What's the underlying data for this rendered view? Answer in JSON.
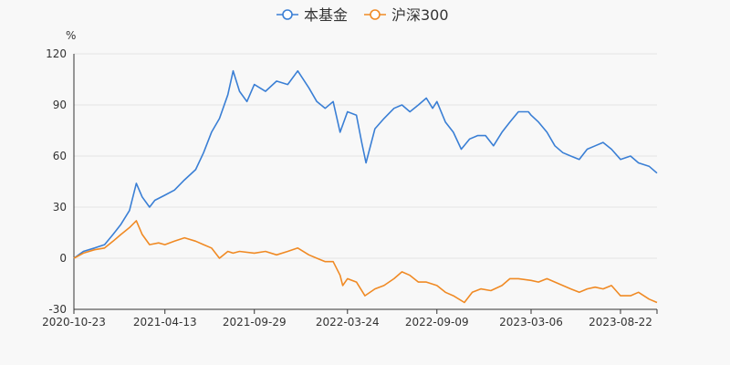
{
  "chart_data": {
    "type": "line",
    "title": "",
    "xlabel": "",
    "ylabel": "%",
    "ylim": [
      -30,
      120
    ],
    "yticks": [
      -30,
      0,
      30,
      60,
      90,
      120
    ],
    "x_start": "2020-10-23",
    "x_end": "2023-10-30",
    "x_ticks": [
      "2020-10-23",
      "2021-04-13",
      "2021-09-29",
      "2022-03-24",
      "2022-09-09",
      "2023-03-06",
      "2023-08-22"
    ],
    "legend_position": "top-center",
    "series": [
      {
        "name": "本基金",
        "color": "#3a7fd5",
        "points": [
          [
            "2020-10-23",
            0
          ],
          [
            "2020-11-10",
            4
          ],
          [
            "2020-12-01",
            6
          ],
          [
            "2020-12-20",
            8
          ],
          [
            "2021-01-05",
            14
          ],
          [
            "2021-01-20",
            20
          ],
          [
            "2021-02-05",
            28
          ],
          [
            "2021-02-18",
            44
          ],
          [
            "2021-03-01",
            36
          ],
          [
            "2021-03-15",
            30
          ],
          [
            "2021-03-25",
            34
          ],
          [
            "2021-04-13",
            37
          ],
          [
            "2021-05-01",
            40
          ],
          [
            "2021-05-20",
            46
          ],
          [
            "2021-06-10",
            52
          ],
          [
            "2021-06-25",
            62
          ],
          [
            "2021-07-10",
            74
          ],
          [
            "2021-07-25",
            82
          ],
          [
            "2021-08-10",
            96
          ],
          [
            "2021-08-20",
            110
          ],
          [
            "2021-09-01",
            98
          ],
          [
            "2021-09-15",
            92
          ],
          [
            "2021-09-29",
            102
          ],
          [
            "2021-10-20",
            98
          ],
          [
            "2021-11-10",
            104
          ],
          [
            "2021-12-01",
            102
          ],
          [
            "2021-12-20",
            110
          ],
          [
            "2022-01-10",
            100
          ],
          [
            "2022-01-25",
            92
          ],
          [
            "2022-02-10",
            88
          ],
          [
            "2022-02-25",
            92
          ],
          [
            "2022-03-10",
            74
          ],
          [
            "2022-03-24",
            86
          ],
          [
            "2022-04-10",
            84
          ],
          [
            "2022-04-20",
            68
          ],
          [
            "2022-04-28",
            56
          ],
          [
            "2022-05-15",
            76
          ],
          [
            "2022-06-01",
            82
          ],
          [
            "2022-06-20",
            88
          ],
          [
            "2022-07-05",
            90
          ],
          [
            "2022-07-20",
            86
          ],
          [
            "2022-08-05",
            90
          ],
          [
            "2022-08-20",
            94
          ],
          [
            "2022-09-01",
            88
          ],
          [
            "2022-09-09",
            92
          ],
          [
            "2022-09-25",
            80
          ],
          [
            "2022-10-10",
            74
          ],
          [
            "2022-10-25",
            64
          ],
          [
            "2022-11-10",
            70
          ],
          [
            "2022-11-25",
            72
          ],
          [
            "2022-12-10",
            72
          ],
          [
            "2022-12-25",
            66
          ],
          [
            "2023-01-10",
            74
          ],
          [
            "2023-01-25",
            80
          ],
          [
            "2023-02-10",
            86
          ],
          [
            "2023-03-01",
            86
          ],
          [
            "2023-03-06",
            84
          ],
          [
            "2023-03-20",
            80
          ],
          [
            "2023-04-05",
            74
          ],
          [
            "2023-04-20",
            66
          ],
          [
            "2023-05-05",
            62
          ],
          [
            "2023-05-20",
            60
          ],
          [
            "2023-06-05",
            58
          ],
          [
            "2023-06-20",
            64
          ],
          [
            "2023-07-05",
            66
          ],
          [
            "2023-07-20",
            68
          ],
          [
            "2023-08-05",
            64
          ],
          [
            "2023-08-22",
            58
          ],
          [
            "2023-09-10",
            60
          ],
          [
            "2023-09-25",
            56
          ],
          [
            "2023-10-15",
            54
          ],
          [
            "2023-10-30",
            50
          ]
        ]
      },
      {
        "name": "沪深300",
        "color": "#f08a24",
        "points": [
          [
            "2020-10-23",
            0
          ],
          [
            "2020-11-10",
            3
          ],
          [
            "2020-12-01",
            5
          ],
          [
            "2020-12-20",
            6
          ],
          [
            "2021-01-05",
            10
          ],
          [
            "2021-01-20",
            14
          ],
          [
            "2021-02-05",
            18
          ],
          [
            "2021-02-18",
            22
          ],
          [
            "2021-03-01",
            14
          ],
          [
            "2021-03-15",
            8
          ],
          [
            "2021-04-01",
            9
          ],
          [
            "2021-04-13",
            8
          ],
          [
            "2021-05-01",
            10
          ],
          [
            "2021-05-20",
            12
          ],
          [
            "2021-06-10",
            10
          ],
          [
            "2021-06-25",
            8
          ],
          [
            "2021-07-10",
            6
          ],
          [
            "2021-07-25",
            0
          ],
          [
            "2021-08-10",
            4
          ],
          [
            "2021-08-20",
            3
          ],
          [
            "2021-09-01",
            4
          ],
          [
            "2021-09-29",
            3
          ],
          [
            "2021-10-20",
            4
          ],
          [
            "2021-11-10",
            2
          ],
          [
            "2021-12-01",
            4
          ],
          [
            "2021-12-20",
            6
          ],
          [
            "2022-01-10",
            2
          ],
          [
            "2022-01-25",
            0
          ],
          [
            "2022-02-10",
            -2
          ],
          [
            "2022-02-25",
            -2
          ],
          [
            "2022-03-10",
            -10
          ],
          [
            "2022-03-15",
            -16
          ],
          [
            "2022-03-24",
            -12
          ],
          [
            "2022-04-10",
            -14
          ],
          [
            "2022-04-26",
            -22
          ],
          [
            "2022-05-15",
            -18
          ],
          [
            "2022-06-01",
            -16
          ],
          [
            "2022-06-20",
            -12
          ],
          [
            "2022-07-05",
            -8
          ],
          [
            "2022-07-20",
            -10
          ],
          [
            "2022-08-05",
            -14
          ],
          [
            "2022-08-20",
            -14
          ],
          [
            "2022-09-09",
            -16
          ],
          [
            "2022-09-25",
            -20
          ],
          [
            "2022-10-10",
            -22
          ],
          [
            "2022-10-31",
            -26
          ],
          [
            "2022-11-15",
            -20
          ],
          [
            "2022-12-01",
            -18
          ],
          [
            "2022-12-20",
            -19
          ],
          [
            "2023-01-10",
            -16
          ],
          [
            "2023-01-25",
            -12
          ],
          [
            "2023-02-10",
            -12
          ],
          [
            "2023-03-06",
            -13
          ],
          [
            "2023-03-20",
            -14
          ],
          [
            "2023-04-05",
            -12
          ],
          [
            "2023-04-20",
            -14
          ],
          [
            "2023-05-05",
            -16
          ],
          [
            "2023-05-20",
            -18
          ],
          [
            "2023-06-05",
            -20
          ],
          [
            "2023-06-20",
            -18
          ],
          [
            "2023-07-05",
            -17
          ],
          [
            "2023-07-20",
            -18
          ],
          [
            "2023-08-05",
            -16
          ],
          [
            "2023-08-22",
            -22
          ],
          [
            "2023-09-10",
            -22
          ],
          [
            "2023-09-25",
            -20
          ],
          [
            "2023-10-15",
            -24
          ],
          [
            "2023-10-30",
            -26
          ]
        ]
      }
    ]
  }
}
